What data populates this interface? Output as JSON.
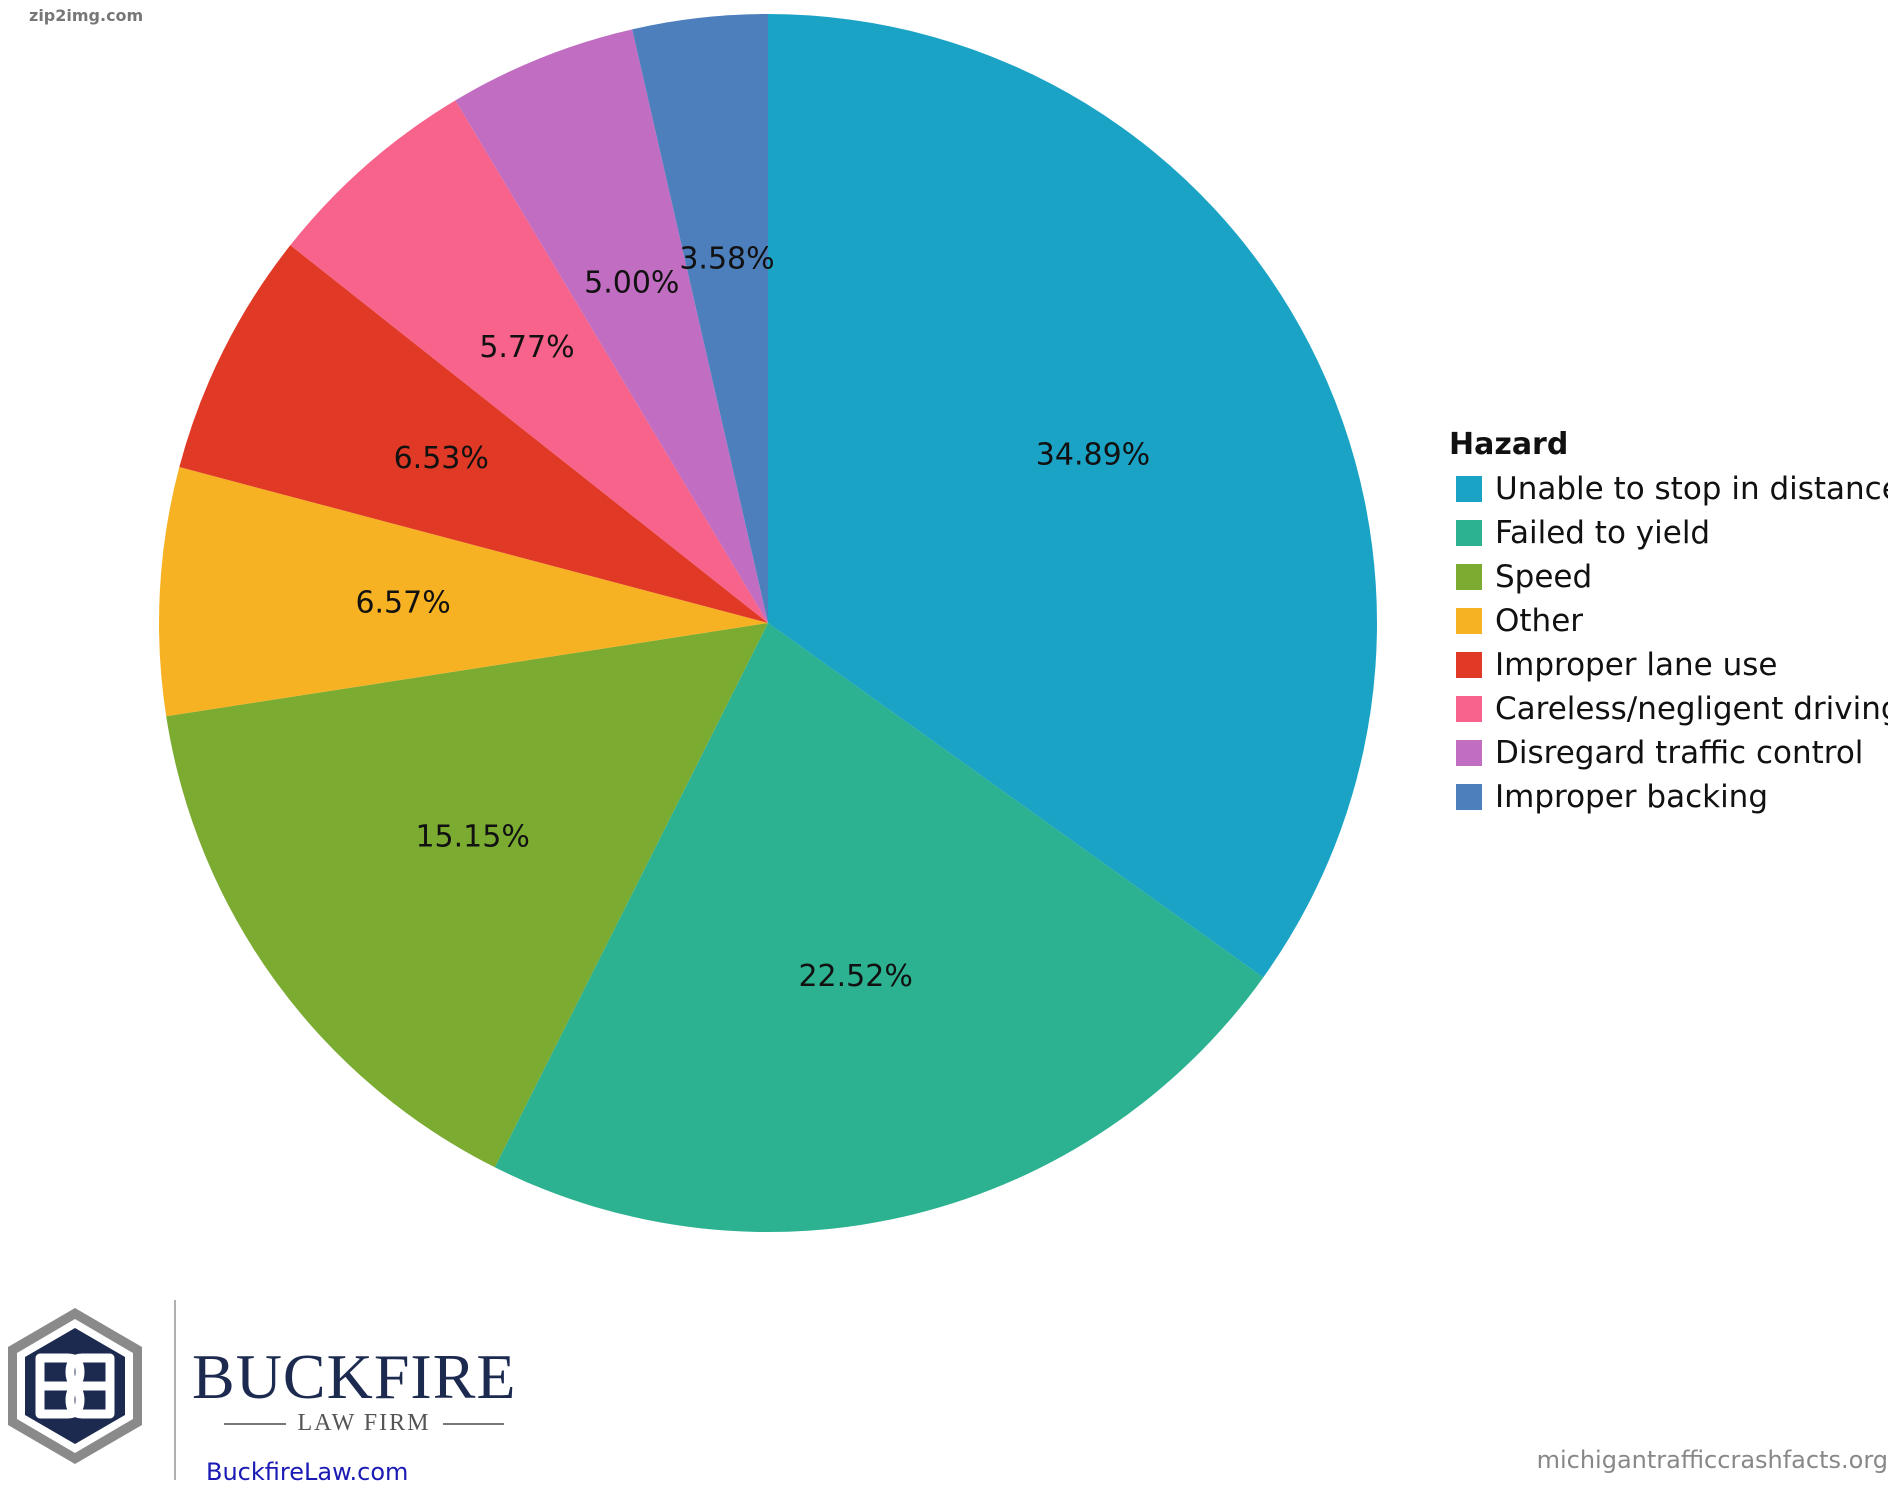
{
  "watermark": "zip2img.com",
  "legend": {
    "title": "Hazard"
  },
  "chart_data": {
    "type": "pie",
    "start": "12 o'clock",
    "direction": "clockwise",
    "legend_position": "right",
    "slices": [
      {
        "label": "Unable to stop in distance",
        "value": 34.89,
        "display": "34.89%",
        "color": "#1ba3c6"
      },
      {
        "label": "Failed to yield",
        "value": 22.52,
        "display": "22.52%",
        "color": "#2cb290"
      },
      {
        "label": "Speed",
        "value": 15.15,
        "display": "15.15%",
        "color": "#7bab31"
      },
      {
        "label": "Other",
        "value": 6.57,
        "display": "6.57%",
        "color": "#f7b223"
      },
      {
        "label": "Improper lane use",
        "value": 6.53,
        "display": "6.53%",
        "color": "#e03a26"
      },
      {
        "label": "Careless/negligent driving",
        "value": 5.77,
        "display": "5.77%",
        "color": "#f7638b"
      },
      {
        "label": "Disregard traffic control",
        "value": 5.0,
        "display": "5.00%",
        "color": "#c16dc1"
      },
      {
        "label": "Improper backing",
        "value": 3.58,
        "display": "3.58%",
        "color": "#4d7fbc"
      }
    ]
  },
  "logo": {
    "name": "BUCKFIRE",
    "subtitle": "LAW FIRM",
    "url": "BuckfireLaw.com",
    "colors": {
      "navy": "#1c2a4f",
      "gray": "#8a8a8a"
    }
  },
  "site_credit": "michigantrafficcrashfacts.org"
}
